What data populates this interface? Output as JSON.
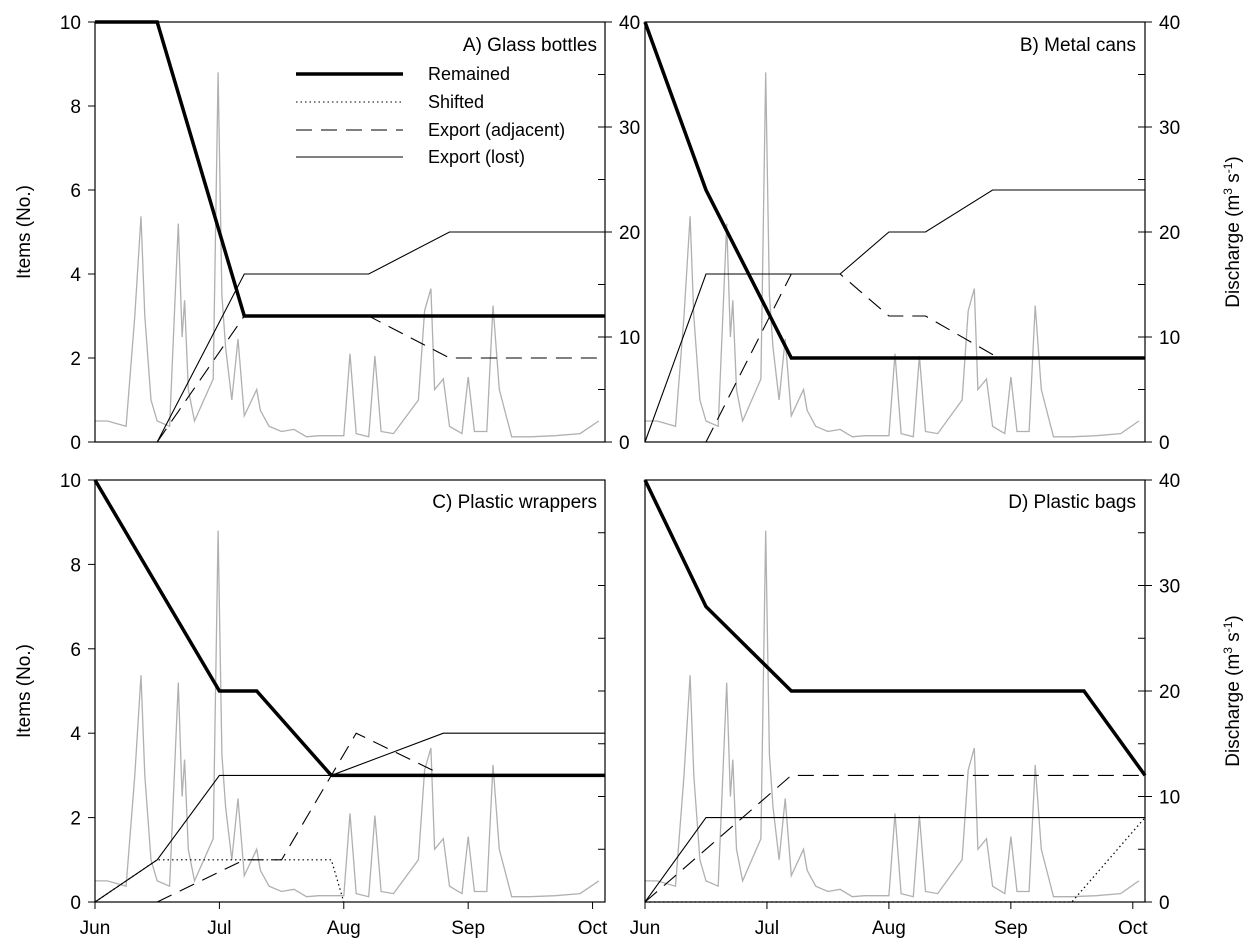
{
  "chart_data": [
    {
      "type": "line",
      "title": "A) Glass bottles",
      "xlabel": "",
      "ylabel": "Items (No.)",
      "y2label": "Discharge (m3 s-1)",
      "xticks": [
        "Jun",
        "Jul",
        "Aug",
        "Sep",
        "Oct"
      ],
      "xlim": [
        0,
        4.1
      ],
      "ylim": [
        0,
        10
      ],
      "y2lim": [
        0,
        40
      ],
      "legend": {
        "position": "top-center",
        "entries": [
          "Remained",
          "Shifted",
          "Export (adjacent)",
          "Export (lost)"
        ]
      },
      "series": [
        {
          "name": "Remained",
          "x": [
            0,
            0.5,
            1.2,
            4.1
          ],
          "y": [
            10,
            10,
            3,
            3
          ]
        },
        {
          "name": "Export (adjacent)",
          "x": [
            0.5,
            1.2,
            2.2,
            2.85,
            4.1
          ],
          "y": [
            0,
            3,
            3,
            2,
            2
          ]
        },
        {
          "name": "Export (lost)",
          "x": [
            0.5,
            1.2,
            2.2,
            2.85,
            4.1
          ],
          "y": [
            0,
            4,
            4,
            5,
            5
          ]
        },
        {
          "name": "Export (lost)",
          "x": [
            0,
            4.1
          ],
          "y": [
            10,
            10
          ]
        }
      ]
    },
    {
      "type": "line",
      "title": "B) Metal cans",
      "xlabel": "",
      "ylabel": "",
      "y2label": "Discharge (m3 s-1)",
      "xticks": [
        "Jun",
        "Jul",
        "Aug",
        "Sep",
        "Oct"
      ],
      "xlim": [
        0,
        4.1
      ],
      "ylim": [
        0,
        10
      ],
      "y2lim": [
        0,
        40
      ],
      "series": [
        {
          "name": "Remained",
          "x": [
            0,
            0.5,
            1.2,
            4.1
          ],
          "y": [
            10,
            6,
            2,
            2
          ]
        },
        {
          "name": "Export (adjacent)",
          "x": [
            0.5,
            1.2,
            1.6,
            2.0,
            2.3,
            2.9
          ],
          "y": [
            0,
            4,
            4,
            3,
            3,
            2
          ]
        },
        {
          "name": "Export (lost)",
          "x": [
            0,
            0.5,
            1.6,
            2.0,
            2.3,
            2.85,
            4.1
          ],
          "y": [
            0,
            4,
            4,
            5,
            5,
            6,
            6
          ]
        }
      ]
    },
    {
      "type": "line",
      "title": "C) Plastic wrappers",
      "xlabel": "",
      "ylabel": "Items (No.)",
      "y2label": "",
      "xticks": [
        "Jun",
        "Jul",
        "Aug",
        "Sep",
        "Oct"
      ],
      "xlim": [
        0,
        4.1
      ],
      "ylim": [
        0,
        10
      ],
      "y2lim": [
        0,
        40
      ],
      "series": [
        {
          "name": "Remained",
          "x": [
            0,
            1.0,
            1.3,
            1.9,
            4.1
          ],
          "y": [
            10,
            5,
            5,
            3,
            3
          ]
        },
        {
          "name": "Shifted",
          "x": [
            0,
            0.5,
            1.2,
            1.9,
            2.0
          ],
          "y": [
            0,
            1,
            1,
            1,
            0
          ]
        },
        {
          "name": "Export (adjacent)",
          "x": [
            0.5,
            1.2,
            1.5,
            2.1,
            2.8
          ],
          "y": [
            0,
            1,
            1,
            4,
            3
          ]
        },
        {
          "name": "Export (lost)",
          "x": [
            0,
            0.5,
            1.0,
            1.9,
            2.8,
            4.1
          ],
          "y": [
            0,
            1,
            3,
            3,
            4,
            4
          ]
        }
      ]
    },
    {
      "type": "line",
      "title": "D) Plastic bags",
      "xlabel": "",
      "ylabel": "",
      "y2label": "Discharge (m3 s-1)",
      "xticks": [
        "Jun",
        "Jul",
        "Aug",
        "Sep",
        "Oct"
      ],
      "xlim": [
        0,
        4.1
      ],
      "ylim": [
        0,
        10
      ],
      "y2lim": [
        0,
        40
      ],
      "series": [
        {
          "name": "Remained",
          "x": [
            0,
            0.5,
            1.2,
            3.6,
            4.1
          ],
          "y": [
            10,
            7,
            5,
            5,
            3
          ]
        },
        {
          "name": "Shifted",
          "x": [
            0,
            3.5,
            4.1
          ],
          "y": [
            0,
            0,
            2
          ]
        },
        {
          "name": "Export (adjacent)",
          "x": [
            0,
            1.2,
            4.1
          ],
          "y": [
            0,
            3,
            3
          ]
        },
        {
          "name": "Export (lost)",
          "x": [
            0,
            0.5,
            4.1
          ],
          "y": [
            0,
            2,
            2
          ]
        }
      ]
    }
  ],
  "discharge": {
    "color": "#b0b0b0",
    "units": "m3 s-1",
    "series": [
      [
        0,
        2
      ],
      [
        0.1,
        2
      ],
      [
        0.25,
        1.5
      ],
      [
        0.32,
        12
      ],
      [
        0.37,
        21.5
      ],
      [
        0.4,
        12
      ],
      [
        0.45,
        4
      ],
      [
        0.5,
        2
      ],
      [
        0.6,
        1.5
      ],
      [
        0.67,
        20.8
      ],
      [
        0.7,
        10
      ],
      [
        0.72,
        13.5
      ],
      [
        0.75,
        5
      ],
      [
        0.8,
        2
      ],
      [
        0.95,
        6
      ],
      [
        0.99,
        35.2
      ],
      [
        1.02,
        14
      ],
      [
        1.05,
        9
      ],
      [
        1.1,
        4
      ],
      [
        1.15,
        9.8
      ],
      [
        1.2,
        2.5
      ],
      [
        1.3,
        5
      ],
      [
        1.33,
        3
      ],
      [
        1.4,
        1.5
      ],
      [
        1.5,
        1
      ],
      [
        1.6,
        1.2
      ],
      [
        1.7,
        0.5
      ],
      [
        1.8,
        0.6
      ],
      [
        2.0,
        0.6
      ],
      [
        2.05,
        8.4
      ],
      [
        2.1,
        0.8
      ],
      [
        2.2,
        0.5
      ],
      [
        2.25,
        8.2
      ],
      [
        2.3,
        1
      ],
      [
        2.4,
        0.8
      ],
      [
        2.6,
        4
      ],
      [
        2.65,
        12.5
      ],
      [
        2.7,
        14.6
      ],
      [
        2.73,
        5
      ],
      [
        2.8,
        6
      ],
      [
        2.85,
        1.5
      ],
      [
        2.95,
        0.8
      ],
      [
        3.0,
        6.2
      ],
      [
        3.05,
        1
      ],
      [
        3.15,
        1
      ],
      [
        3.2,
        13
      ],
      [
        3.25,
        5
      ],
      [
        3.35,
        0.5
      ],
      [
        3.5,
        0.5
      ],
      [
        3.7,
        0.6
      ],
      [
        3.9,
        0.8
      ],
      [
        4.05,
        2
      ]
    ]
  }
}
